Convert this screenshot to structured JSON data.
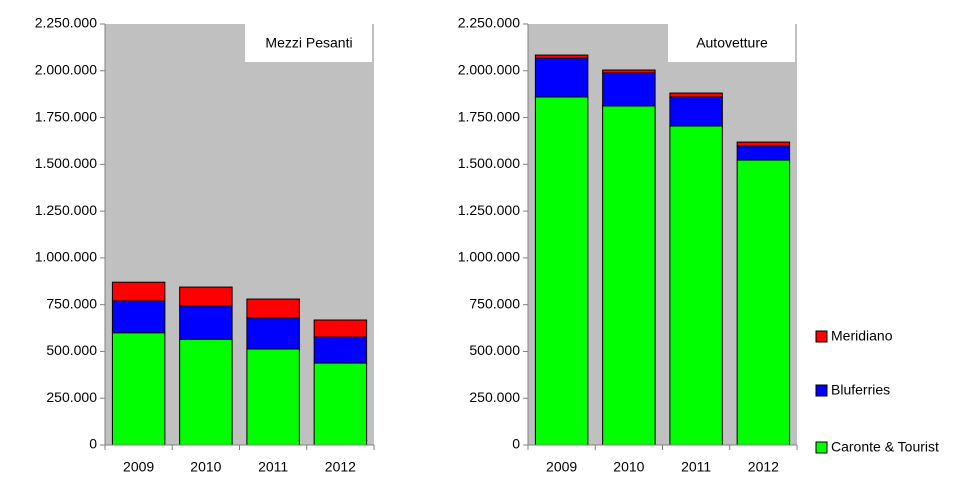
{
  "chart_data": [
    {
      "type": "stacked-bar",
      "title": "Mezzi Pesanti",
      "categories": [
        "2009",
        "2010",
        "2011",
        "2012"
      ],
      "series": [
        {
          "color": "#00ff00",
          "values": [
            600000,
            565000,
            513000,
            438000
          ]
        },
        {
          "color": "#0000ff",
          "values": [
            170000,
            178000,
            166000,
            139000
          ]
        },
        {
          "color": "#ff0000",
          "values": [
            100000,
            101000,
            101000,
            91000
          ]
        }
      ],
      "ylim": [
        0,
        2250000
      ],
      "yticks": [
        0,
        {
          "value": 250000,
          "label": "250.000"
        },
        {
          "value": 500000,
          "label": "500.000"
        },
        {
          "value": 750000,
          "label": "750.000"
        },
        {
          "value": 1000000,
          "label": "1.000.000"
        },
        {
          "value": 1250000,
          "label": "1.250.000"
        },
        {
          "value": 1500000,
          "label": "1.500.000"
        },
        {
          "value": 1750000,
          "label": "1.750.000"
        },
        {
          "value": 2000000,
          "label": "2.000.000"
        },
        {
          "value": 2250000,
          "label": "2.250.000"
        }
      ],
      "plot_background": "#c0c0c0"
    },
    {
      "type": "stacked-bar",
      "title": "Autovetture",
      "categories": [
        "2009",
        "2010",
        "2011",
        "2012"
      ],
      "series": [
        {
          "name": "Caronte & Tourist",
          "color": "#00ff00",
          "values": [
            1860000,
            1812000,
            1705000,
            1523000
          ]
        },
        {
          "name": "Bluferries",
          "color": "#0000ff",
          "values": [
            208000,
            176000,
            155000,
            75000
          ]
        },
        {
          "name": "Meridiano",
          "color": "#ff0000",
          "values": [
            16000,
            16000,
            21000,
            21000
          ]
        }
      ],
      "ylim": [
        0,
        2250000
      ],
      "yticks": [
        0,
        {
          "value": 250000,
          "label": "250.000"
        },
        {
          "value": 500000,
          "label": "500.000"
        },
        {
          "value": 750000,
          "label": "750.000"
        },
        {
          "value": 1000000,
          "label": "1.000.000"
        },
        {
          "value": 1250000,
          "label": "1.250.000"
        },
        {
          "value": 1500000,
          "label": "1.500.000"
        },
        {
          "value": 1750000,
          "label": "1.750.000"
        },
        {
          "value": 2000000,
          "label": "2.000.000"
        },
        {
          "value": 2250000,
          "label": "2.250.000"
        }
      ],
      "plot_background": "#c0c0c0",
      "legend": "right"
    }
  ]
}
